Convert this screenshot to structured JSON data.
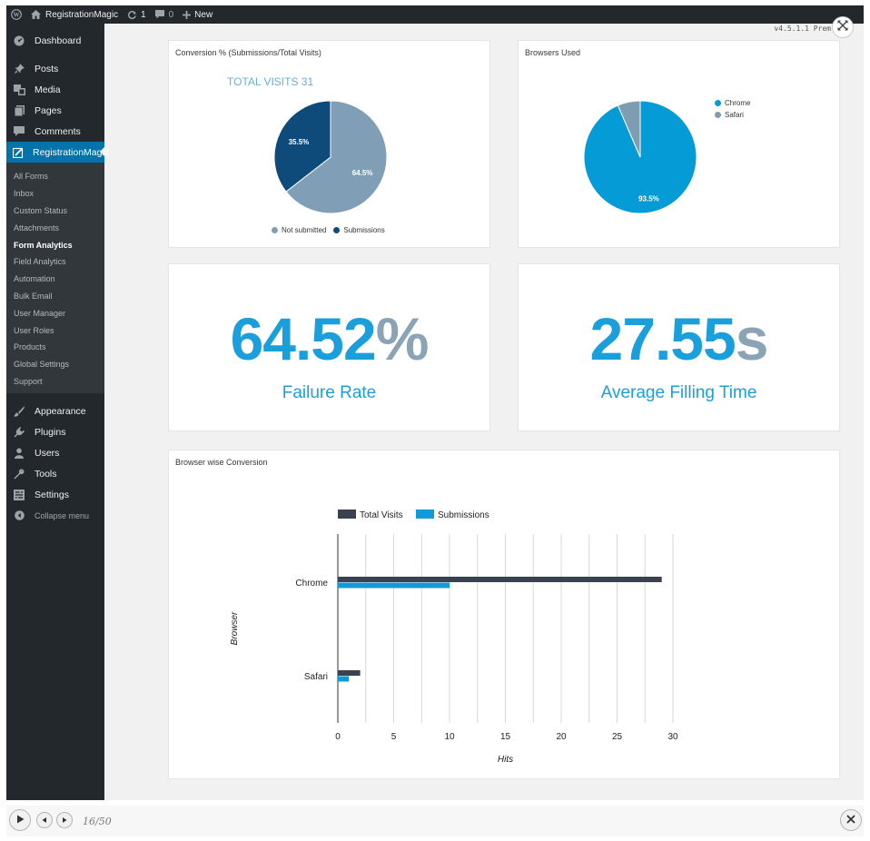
{
  "adminbar": {
    "site_name": "RegistrationMagic",
    "updates_count": "1",
    "comments_count": "0",
    "new_label": "New"
  },
  "sidebar": {
    "top_items": [
      {
        "label": "Dashboard",
        "icon": "dashboard-icon"
      },
      {
        "label": "Posts",
        "icon": "pin-icon"
      },
      {
        "label": "Media",
        "icon": "media-icon"
      },
      {
        "label": "Pages",
        "icon": "pages-icon"
      },
      {
        "label": "Comments",
        "icon": "comment-icon"
      },
      {
        "label": "RegistrationMagic",
        "icon": "form-icon"
      }
    ],
    "submenu": [
      "All Forms",
      "Inbox",
      "Custom Status",
      "Attachments",
      "Form Analytics",
      "Field Analytics",
      "Automation",
      "Bulk Email",
      "User Manager",
      "User Roles",
      "Products",
      "Global Settings",
      "Support"
    ],
    "bottom_items": [
      {
        "label": "Appearance",
        "icon": "brush-icon"
      },
      {
        "label": "Plugins",
        "icon": "plugin-icon"
      },
      {
        "label": "Users",
        "icon": "users-icon"
      },
      {
        "label": "Tools",
        "icon": "wrench-icon"
      },
      {
        "label": "Settings",
        "icon": "settings-icon"
      }
    ],
    "collapse_label": "Collapse menu"
  },
  "version_text": "v4.5.1.1 Prem",
  "conversion_card": {
    "title": "Conversion % (Submissions/Total Visits)",
    "total_visits_label": "TOTAL VISITS 31",
    "legend": [
      "Not submitted",
      "Submissions"
    ]
  },
  "browsers_card": {
    "title": "Browsers Used",
    "legend": [
      "Chrome",
      "Safari"
    ]
  },
  "failure_card": {
    "value": "64.52",
    "unit": "%",
    "label": "Failure Rate"
  },
  "filling_card": {
    "value": "27.55",
    "unit": "s",
    "label": "Average Filling Time"
  },
  "bar_card": {
    "title": "Browser wise Conversion"
  },
  "colors": {
    "not_submitted": "#809fb6",
    "submissions": "#0e4a7a",
    "chrome": "#059bd6",
    "safari": "#7e9db3",
    "total_visits": "#3a4250",
    "bar_submissions": "#119ad6",
    "accent": "#1a9fdb"
  },
  "chart_data": [
    {
      "type": "pie",
      "title": "Conversion % (Submissions/Total Visits)",
      "labels": [
        "Not submitted",
        "Submissions"
      ],
      "values": [
        64.5,
        35.5
      ],
      "slice_labels": [
        "64.5%",
        "35.5%"
      ]
    },
    {
      "type": "pie",
      "title": "Browsers Used",
      "labels": [
        "Chrome",
        "Safari"
      ],
      "values": [
        93.5,
        6.5
      ],
      "slice_labels": [
        "93.5%",
        ""
      ]
    },
    {
      "type": "bar",
      "orientation": "horizontal",
      "title": "Browser wise Conversion",
      "categories": [
        "Chrome",
        "Safari"
      ],
      "series": [
        {
          "name": "Total Visits",
          "values": [
            29,
            2
          ]
        },
        {
          "name": "Submissions",
          "values": [
            10,
            1
          ]
        }
      ],
      "xlabel": "Hits",
      "ylabel": "Browser",
      "xlim": [
        0,
        30
      ],
      "xticks": [
        "0",
        "5",
        "10",
        "15",
        "20",
        "25",
        "30"
      ],
      "legend_position": "top",
      "grid": true
    }
  ],
  "slideshow": {
    "counter": "16/50"
  }
}
